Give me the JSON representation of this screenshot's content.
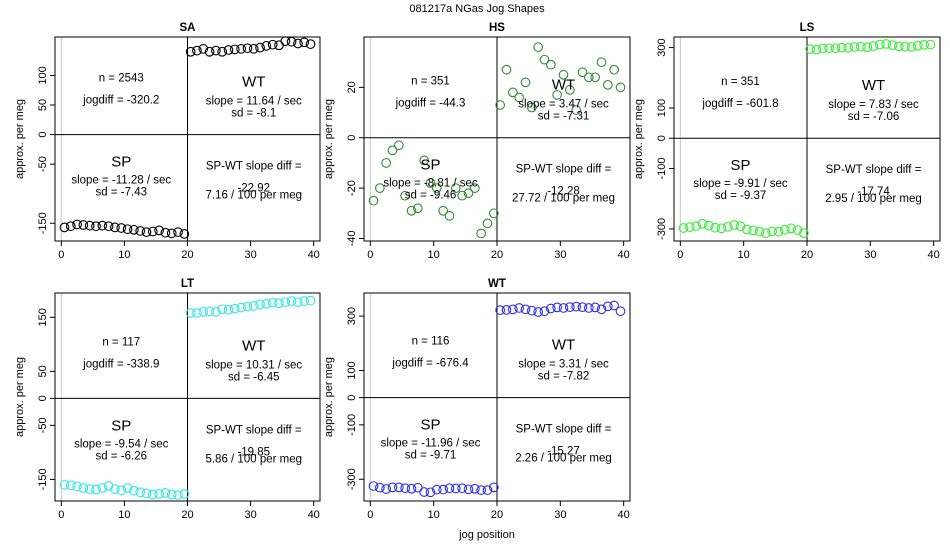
{
  "figure": {
    "title": "081217a   NGas Jog Shapes",
    "xlabel": "jog position"
  },
  "chart_data": [
    {
      "type": "scatter",
      "title": "SA",
      "color": "#000000",
      "xlim": [
        -1,
        41
      ],
      "ylim": [
        -180,
        165
      ],
      "xticks": [
        0,
        10,
        20,
        30,
        40
      ],
      "yticks": [
        -150,
        -50,
        0,
        50,
        100
      ],
      "xlabel": "",
      "ylabel": "approx. per meg",
      "left_label": "SP",
      "right_label": "WT",
      "n": "n = 2543",
      "jogdiff": "jogdiff = -320.2",
      "wt_slope": "slope = 11.64 / sec",
      "wt_sd": "sd = -8.1",
      "sp_slope": "slope = -11.28 / sec",
      "sp_sd": "sd = -7.43",
      "diff_label": "SP-WT slope diff =",
      "diff_value": "-22.92",
      "diff_rate": "7.16 / 100 per meg",
      "x": [
        0,
        1,
        2,
        3,
        4,
        5,
        6,
        7,
        8,
        9,
        10,
        11,
        12,
        13,
        14,
        15,
        16,
        17,
        18,
        19,
        20,
        21,
        22,
        23,
        24,
        25,
        26,
        27,
        28,
        29,
        30,
        31,
        32,
        33,
        34,
        35,
        36,
        37,
        38,
        39
      ],
      "y": [
        -157,
        -155,
        -152,
        -153,
        -154,
        -155,
        -154,
        -155,
        -157,
        -158,
        -160,
        -161,
        -163,
        -165,
        -164,
        -162,
        -166,
        -167,
        -165,
        -168,
        140,
        142,
        145,
        140,
        142,
        140,
        143,
        144,
        145,
        146,
        145,
        147,
        150,
        152,
        151,
        158,
        157,
        154,
        156,
        153
      ]
    },
    {
      "type": "scatter",
      "title": "HS",
      "color": "#2e8b2e",
      "xlim": [
        -1,
        41
      ],
      "ylim": [
        -41,
        40
      ],
      "xticks": [
        0,
        10,
        20,
        30,
        40
      ],
      "yticks": [
        -40,
        -20,
        0,
        20
      ],
      "xlabel": "",
      "ylabel": "approx. per meg",
      "left_label": "SP",
      "right_label": "WT",
      "n": "n = 351",
      "jogdiff": "jogdiff = -44.3",
      "wt_slope": "slope = 3.47 / sec",
      "wt_sd": "sd = -7.31",
      "sp_slope": "slope = -8.81 / sec",
      "sp_sd": "sd = -9.46",
      "diff_label": "SP-WT slope diff =",
      "diff_value": "-12.28",
      "diff_rate": "27.72 / 100 per meg",
      "x": [
        0,
        1,
        2,
        3,
        4,
        5,
        6,
        7,
        8,
        9,
        10,
        11,
        12,
        13,
        14,
        15,
        16,
        17,
        18,
        19,
        20,
        21,
        22,
        23,
        24,
        25,
        26,
        27,
        28,
        29,
        30,
        31,
        32,
        33,
        34,
        35,
        36,
        37,
        38,
        39
      ],
      "y": [
        -25,
        -20,
        -10,
        -5,
        -3,
        -23,
        -29,
        -28,
        -9,
        -18,
        -20,
        -29,
        -31,
        -20,
        -23,
        -22,
        -20,
        -38,
        -34,
        -30,
        13,
        27,
        18,
        16,
        22,
        12,
        36,
        31,
        29,
        17,
        25,
        19,
        11,
        26,
        24,
        24,
        30,
        21,
        27,
        20
      ]
    },
    {
      "type": "scatter",
      "title": "LS",
      "color": "#33ee33",
      "xlim": [
        -1,
        41
      ],
      "ylim": [
        -340,
        335
      ],
      "xticks": [
        0,
        10,
        20,
        30,
        40
      ],
      "yticks": [
        -300,
        -100,
        0,
        100,
        300
      ],
      "xlabel": "",
      "ylabel": "approx. per meg",
      "left_label": "SP",
      "right_label": "WT",
      "n": "n = 351",
      "jogdiff": "jogdiff = -601.8",
      "wt_slope": "slope = 7.83 / sec",
      "wt_sd": "sd = -7.06",
      "sp_slope": "slope = -9.91 / sec",
      "sp_sd": "sd = -9.37",
      "diff_label": "SP-WT slope diff =",
      "diff_value": "-17.74",
      "diff_rate": "2.95 / 100 per meg",
      "x": [
        0,
        1,
        2,
        3,
        4,
        5,
        6,
        7,
        8,
        9,
        10,
        11,
        12,
        13,
        14,
        15,
        16,
        17,
        18,
        19,
        20,
        21,
        22,
        23,
        24,
        25,
        26,
        27,
        28,
        29,
        30,
        31,
        32,
        33,
        34,
        35,
        36,
        37,
        38,
        39
      ],
      "y": [
        -297,
        -294,
        -291,
        -283,
        -289,
        -296,
        -298,
        -293,
        -287,
        -291,
        -302,
        -305,
        -309,
        -314,
        -308,
        -309,
        -303,
        -298,
        -304,
        -314,
        295,
        293,
        297,
        298,
        298,
        300,
        299,
        302,
        303,
        301,
        305,
        310,
        312,
        308,
        304,
        303,
        302,
        306,
        309,
        310
      ]
    },
    {
      "type": "scatter",
      "title": "LT",
      "color": "#33e6e6",
      "xlim": [
        -1,
        41
      ],
      "ylim": [
        -190,
        195
      ],
      "xticks": [
        0,
        10,
        20,
        30,
        40
      ],
      "yticks": [
        -150,
        -50,
        0,
        50,
        150
      ],
      "xlabel": "",
      "ylabel": "approx. per meg",
      "left_label": "SP",
      "right_label": "WT",
      "n": "n = 117",
      "jogdiff": "jogdiff = -338.9",
      "wt_slope": "slope = 10.31 / sec",
      "wt_sd": "sd = -6.45",
      "sp_slope": "slope = -9.54 / sec",
      "sp_sd": "sd = -6.26",
      "diff_label": "SP-WT slope diff =",
      "diff_value": "-19.85",
      "diff_rate": "5.86 / 100 per meg",
      "x": [
        0,
        1,
        2,
        3,
        4,
        5,
        6,
        7,
        8,
        9,
        10,
        11,
        12,
        13,
        14,
        15,
        16,
        17,
        18,
        19,
        20,
        21,
        22,
        23,
        24,
        25,
        26,
        27,
        28,
        29,
        30,
        31,
        32,
        33,
        34,
        35,
        36,
        37,
        38,
        39
      ],
      "y": [
        -160,
        -161,
        -163,
        -166,
        -168,
        -169,
        -166,
        -162,
        -168,
        -170,
        -166,
        -171,
        -174,
        -176,
        -178,
        -177,
        -175,
        -178,
        -179,
        -177,
        158,
        158,
        160,
        161,
        160,
        165,
        164,
        166,
        168,
        170,
        171,
        174,
        175,
        177,
        176,
        178,
        180,
        178,
        180,
        181
      ]
    },
    {
      "type": "scatter",
      "title": "WT",
      "color": "#2e2ee6",
      "xlim": [
        -1,
        41
      ],
      "ylim": [
        -380,
        385
      ],
      "xticks": [
        0,
        10,
        20,
        30,
        40
      ],
      "yticks": [
        -300,
        -100,
        0,
        100,
        300
      ],
      "xlabel": "",
      "ylabel": "approx. per meg",
      "left_label": "SP",
      "right_label": "WT",
      "n": "n = 116",
      "jogdiff": "jogdiff = -676.4",
      "wt_slope": "slope = 3.31 / sec",
      "wt_sd": "sd = -7.82",
      "sp_slope": "slope = -11.96 / sec",
      "sp_sd": "sd = -9.71",
      "diff_label": "SP-WT slope diff =",
      "diff_value": "-15.27",
      "diff_rate": "2.26 / 100 per meg",
      "x": [
        0,
        1,
        2,
        3,
        4,
        5,
        6,
        7,
        8,
        9,
        10,
        11,
        12,
        13,
        14,
        15,
        16,
        17,
        18,
        19,
        20,
        21,
        22,
        23,
        24,
        25,
        26,
        27,
        28,
        29,
        30,
        31,
        32,
        33,
        34,
        35,
        36,
        37,
        38,
        39
      ],
      "y": [
        -325,
        -331,
        -336,
        -330,
        -330,
        -333,
        -335,
        -331,
        -347,
        -348,
        -338,
        -338,
        -333,
        -334,
        -333,
        -337,
        -335,
        -340,
        -340,
        -330,
        322,
        323,
        325,
        330,
        325,
        320,
        315,
        318,
        328,
        332,
        330,
        333,
        335,
        333,
        330,
        332,
        325,
        336,
        339,
        318
      ]
    }
  ]
}
